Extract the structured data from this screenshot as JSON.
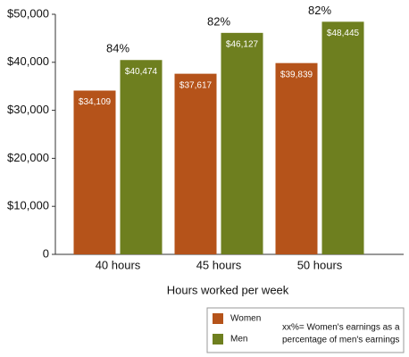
{
  "chart_data": {
    "type": "bar",
    "x_label": "Hours worked per week",
    "categories": [
      "40 hours",
      "45 hours",
      "50 hours"
    ],
    "series": [
      {
        "name": "Women",
        "color": "#b5531a",
        "values": [
          34109,
          37617,
          39839
        ],
        "value_labels": [
          "$34,109",
          "$37,617",
          "$39,839"
        ]
      },
      {
        "name": "Men",
        "color": "#6e7f1f",
        "values": [
          40474,
          46127,
          48445
        ],
        "value_labels": [
          "$40,474",
          "$46,127",
          "$48,445"
        ]
      }
    ],
    "annotations": [
      "84%",
      "82%",
      "82%"
    ],
    "legend_note": [
      "xx%= Women's earnings as a",
      "percentage of men's earnings"
    ],
    "ylim": [
      0,
      50000
    ],
    "yticks": [
      0,
      {
        "value": 10000,
        "label": "$10,000"
      },
      {
        "value": 20000,
        "label": "$20,000"
      },
      {
        "value": 30000,
        "label": "$30,000"
      },
      {
        "value": 40000,
        "label": "$40,000"
      },
      {
        "value": 50000,
        "label": "$50,000"
      }
    ],
    "legend_position": "bottom-right"
  }
}
